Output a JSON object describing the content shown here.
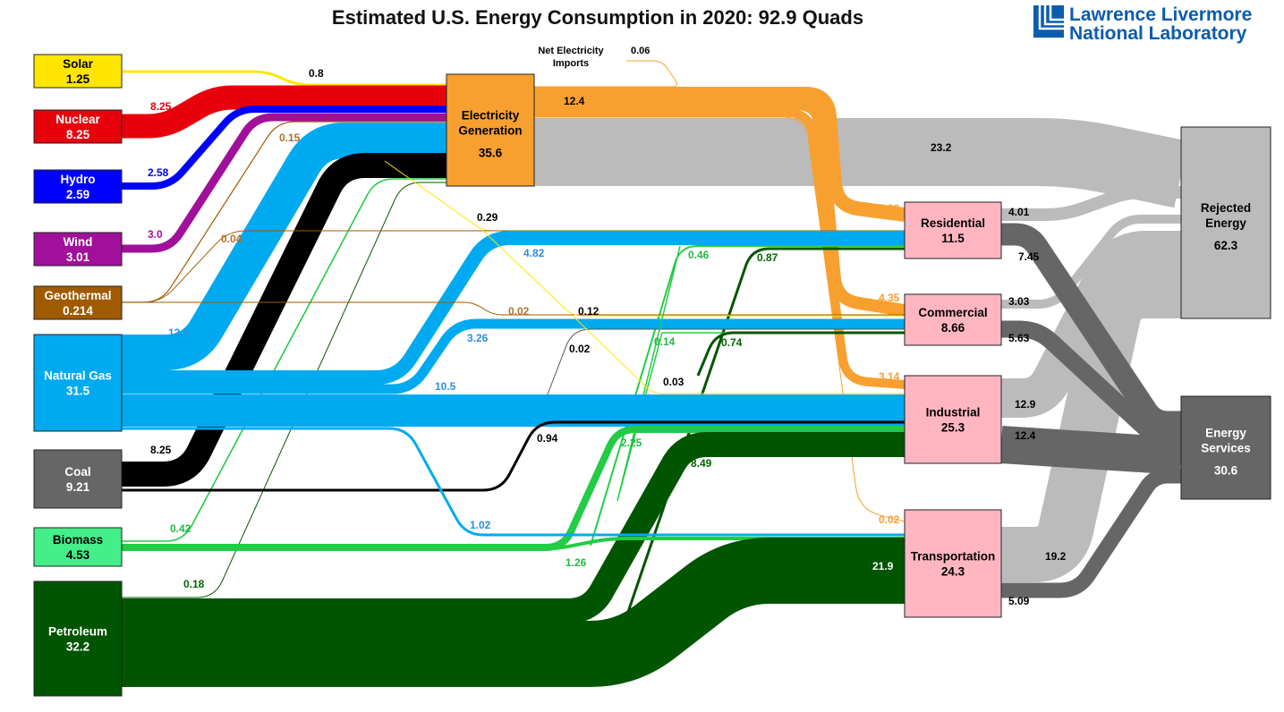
{
  "title": "Estimated U.S. Energy Consumption in 2020: 92.9 Quads",
  "logo": {
    "line1": "Lawrence Livermore",
    "line2": "National Laboratory"
  },
  "colors": {
    "solar": "#ffe600",
    "nuclear": "#e8000b",
    "hydro": "#0000ff",
    "wind": "#a0109a",
    "geothermal": "#a05a00",
    "natural_gas": "#00aaf0",
    "coal": "#666666",
    "coal_flow": "#000000",
    "biomass": "#44ee88",
    "biomass_flow": "#22cc44",
    "petroleum": "#005500",
    "electricity": "#f7a030",
    "end_use": "#ffb6c1",
    "rejected": "#bbbbbb",
    "services": "#666666"
  },
  "sources": [
    {
      "name": "Solar",
      "value": "1.25"
    },
    {
      "name": "Nuclear",
      "value": "8.25"
    },
    {
      "name": "Hydro",
      "value": "2.59"
    },
    {
      "name": "Wind",
      "value": "3.01"
    },
    {
      "name": "Geothermal",
      "value": "0.214"
    },
    {
      "name": "Natural Gas",
      "value": "31.5"
    },
    {
      "name": "Coal",
      "value": "9.21"
    },
    {
      "name": "Biomass",
      "value": "4.53"
    },
    {
      "name": "Petroleum",
      "value": "32.2"
    }
  ],
  "electricity": {
    "line1": "Electricity",
    "line2": "Generation",
    "value": "35.6"
  },
  "net_imports": {
    "line1": "Net Electricity",
    "line2": "Imports",
    "value": "0.06"
  },
  "sectors": [
    {
      "name": "Residential",
      "value": "11.5"
    },
    {
      "name": "Commercial",
      "value": "8.66"
    },
    {
      "name": "Industrial",
      "value": "25.3"
    },
    {
      "name": "Transportation",
      "value": "24.3"
    }
  ],
  "rejected": {
    "line1": "Rejected",
    "line2": "Energy",
    "value": "62.3"
  },
  "services": {
    "line1": "Energy",
    "line2": "Services",
    "value": "30.6"
  },
  "flow_labels": [
    "0.8",
    "8.25",
    "2.58",
    "3.0",
    "0.15",
    "0.04",
    "12.0",
    "8.25",
    "0.42",
    "0.18",
    "12.4",
    "23.2",
    "0.29",
    "4.82",
    "0.02",
    "0.12",
    "3.26",
    "0.02",
    "0.14",
    "0.74",
    "10.5",
    "0.03",
    "0.46",
    "0.87",
    "0.94",
    "2.25",
    "8.49",
    "1.02",
    "1.26",
    "21.9",
    "4.99",
    "4.35",
    "3.14",
    "0.02",
    "4.01",
    "7.45",
    "3.03",
    "5.63",
    "12.9",
    "12.4",
    "19.2",
    "5.09"
  ]
}
